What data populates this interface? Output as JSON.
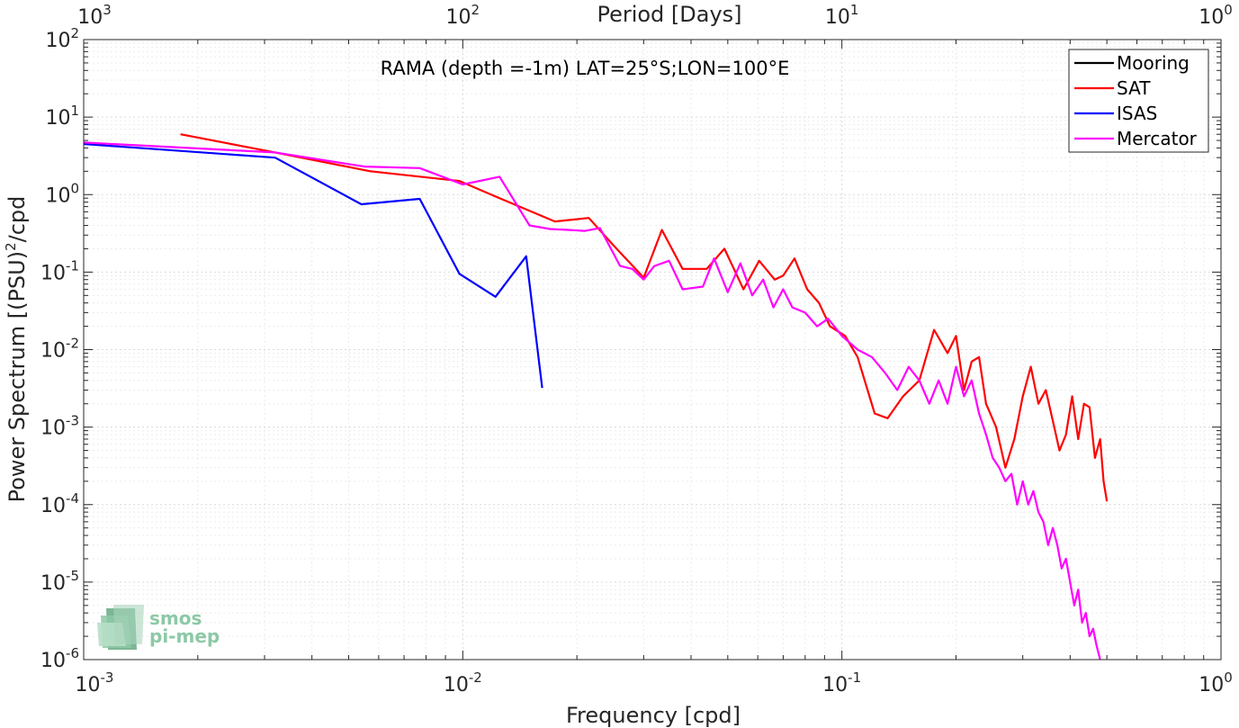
{
  "chart_data": {
    "type": "line",
    "title": "RAMA (depth =-1m) LAT=25°S;LON=100°E",
    "xlabel": "Frequency [cpd]",
    "ylabel": "Power Spectrum [(PSU)",
    "ylabel_sup": "2",
    "ylabel_suffix": "/cpd",
    "top_xlabel": "Period [Days]",
    "x_scale": "log",
    "y_scale": "log",
    "xlim": [
      0.001,
      1
    ],
    "ylim": [
      1e-06,
      100
    ],
    "grid": true,
    "minor_grid": true,
    "legend_position": "top-right",
    "x_ticks": [
      {
        "base": "10",
        "exp": "-3",
        "value": 0.001
      },
      {
        "base": "10",
        "exp": "-2",
        "value": 0.01
      },
      {
        "base": "10",
        "exp": "-1",
        "value": 0.1
      },
      {
        "base": "10",
        "exp": "0",
        "value": 1
      }
    ],
    "top_ticks": [
      {
        "base": "10",
        "exp": "3",
        "value": 0.001
      },
      {
        "base": "10",
        "exp": "2",
        "value": 0.01
      },
      {
        "base": "10",
        "exp": "1",
        "value": 0.1
      },
      {
        "base": "10",
        "exp": "0",
        "value": 1
      }
    ],
    "y_ticks": [
      {
        "base": "10",
        "exp": "-6",
        "value": 1e-06
      },
      {
        "base": "10",
        "exp": "-5",
        "value": 1e-05
      },
      {
        "base": "10",
        "exp": "-4",
        "value": 0.0001
      },
      {
        "base": "10",
        "exp": "-3",
        "value": 0.001
      },
      {
        "base": "10",
        "exp": "-2",
        "value": 0.01
      },
      {
        "base": "10",
        "exp": "-1",
        "value": 0.1
      },
      {
        "base": "10",
        "exp": "0",
        "value": 1
      },
      {
        "base": "10",
        "exp": "1",
        "value": 10
      },
      {
        "base": "10",
        "exp": "2",
        "value": 100
      }
    ],
    "series": [
      {
        "name": "Mooring",
        "color": "#000000",
        "x": [],
        "y": []
      },
      {
        "name": "SAT",
        "color": "#ff0000",
        "x": [
          0.0018,
          0.0032,
          0.0057,
          0.0098,
          0.0125,
          0.0175,
          0.0215,
          0.025,
          0.03,
          0.0335,
          0.038,
          0.044,
          0.049,
          0.055,
          0.0605,
          0.0665,
          0.07,
          0.075,
          0.081,
          0.087,
          0.093,
          0.102,
          0.11,
          0.122,
          0.132,
          0.145,
          0.16,
          0.175,
          0.19,
          0.2,
          0.21,
          0.22,
          0.23,
          0.24,
          0.255,
          0.27,
          0.285,
          0.3,
          0.315,
          0.33,
          0.345,
          0.36,
          0.375,
          0.39,
          0.405,
          0.42,
          0.435,
          0.45,
          0.465,
          0.48,
          0.49,
          0.5
        ],
        "y": [
          6.0,
          3.5,
          2.0,
          1.5,
          0.9,
          0.45,
          0.5,
          0.22,
          0.085,
          0.35,
          0.11,
          0.11,
          0.2,
          0.06,
          0.14,
          0.08,
          0.09,
          0.15,
          0.06,
          0.04,
          0.02,
          0.015,
          0.008,
          0.0015,
          0.0013,
          0.0025,
          0.004,
          0.018,
          0.009,
          0.015,
          0.003,
          0.007,
          0.008,
          0.002,
          0.001,
          0.0003,
          0.0007,
          0.0025,
          0.006,
          0.002,
          0.003,
          0.0012,
          0.0005,
          0.0008,
          0.0025,
          0.0007,
          0.002,
          0.0018,
          0.0004,
          0.0007,
          0.0002,
          0.00011
        ]
      },
      {
        "name": "ISAS",
        "color": "#0000ff",
        "x": [
          0.001,
          0.0032,
          0.0054,
          0.0077,
          0.0098,
          0.0122,
          0.0147,
          0.0162
        ],
        "y": [
          4.5,
          3.0,
          0.75,
          0.88,
          0.095,
          0.048,
          0.16,
          0.0032
        ]
      },
      {
        "name": "Mercator",
        "color": "#ff00ff",
        "x": [
          0.001,
          0.0032,
          0.0055,
          0.0077,
          0.01,
          0.0125,
          0.015,
          0.017,
          0.019,
          0.021,
          0.023,
          0.026,
          0.028,
          0.03,
          0.032,
          0.035,
          0.038,
          0.043,
          0.046,
          0.05,
          0.054,
          0.058,
          0.062,
          0.066,
          0.07,
          0.074,
          0.08,
          0.086,
          0.092,
          0.1,
          0.11,
          0.12,
          0.13,
          0.14,
          0.15,
          0.16,
          0.17,
          0.18,
          0.19,
          0.2,
          0.21,
          0.22,
          0.23,
          0.24,
          0.25,
          0.26,
          0.27,
          0.28,
          0.29,
          0.3,
          0.31,
          0.32,
          0.33,
          0.34,
          0.35,
          0.36,
          0.37,
          0.38,
          0.39,
          0.4,
          0.41,
          0.42,
          0.43,
          0.44,
          0.45,
          0.46,
          0.47,
          0.48
        ],
        "y": [
          4.7,
          3.5,
          2.3,
          2.2,
          1.35,
          1.7,
          0.4,
          0.36,
          0.35,
          0.34,
          0.37,
          0.12,
          0.11,
          0.08,
          0.12,
          0.14,
          0.06,
          0.065,
          0.15,
          0.055,
          0.13,
          0.05,
          0.08,
          0.035,
          0.06,
          0.035,
          0.03,
          0.02,
          0.025,
          0.015,
          0.01,
          0.008,
          0.005,
          0.003,
          0.006,
          0.004,
          0.002,
          0.004,
          0.002,
          0.006,
          0.0025,
          0.004,
          0.0015,
          0.0008,
          0.0004,
          0.0003,
          0.0002,
          0.00025,
          0.0001,
          0.0002,
          0.0001,
          0.00015,
          8e-05,
          6e-05,
          3e-05,
          5e-05,
          3e-05,
          1.5e-05,
          2e-05,
          1e-05,
          5e-06,
          8e-06,
          3e-06,
          4e-06,
          2e-06,
          2.5e-06,
          1.5e-06,
          1e-06
        ]
      }
    ]
  },
  "logo": {
    "line1": "smos",
    "line2": "pi-mep"
  },
  "colors": {
    "axis": "#262626",
    "grid": "#d9d9d9",
    "minor_grid": "#ebebeb",
    "logo": "#8cc9a6"
  }
}
